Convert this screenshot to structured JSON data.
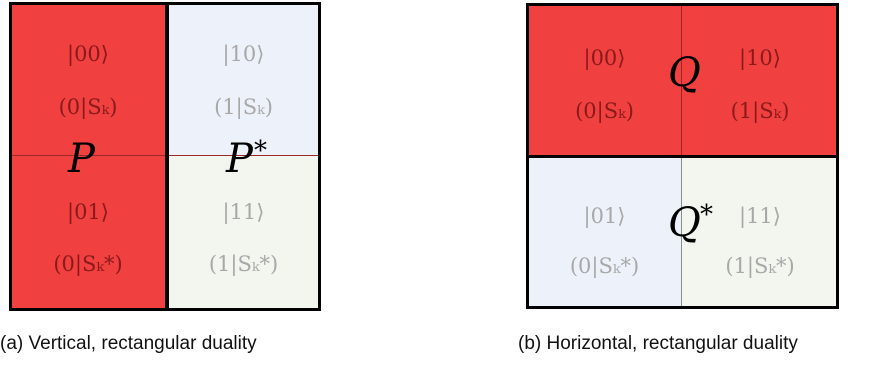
{
  "diagram_a": {
    "caption": "(a) Vertical, rectangular duality",
    "symbol_left": "P",
    "symbol_right": "P",
    "symbol_right_sup": "*",
    "cells": {
      "top_left": {
        "ket": "|00⟩",
        "label": "(0|Sₖ)"
      },
      "bottom_left": {
        "ket": "|01⟩",
        "label": "(0|Sₖ*)"
      },
      "top_right": {
        "ket": "|10⟩",
        "label": "(1|Sₖ)"
      },
      "bottom_right": {
        "ket": "|11⟩",
        "label": "(1|Sₖ*)"
      }
    }
  },
  "diagram_b": {
    "caption": "(b) Horizontal, rectangular duality",
    "symbol_top": "Q",
    "symbol_bottom": "Q",
    "symbol_bottom_sup": "*",
    "cells": {
      "top_left": {
        "ket": "|00⟩",
        "label": "(0|Sₖ)"
      },
      "top_right": {
        "ket": "|10⟩",
        "label": "(1|Sₖ)"
      },
      "bottom_left": {
        "ket": "|01⟩",
        "label": "(0|Sₖ*)"
      },
      "bottom_right": {
        "ket": "|11⟩",
        "label": "(1|Sₖ*)"
      }
    }
  },
  "colors": {
    "red": "#f04040",
    "light_blue": "#edf2fa",
    "light_green": "#f2f6ee",
    "dark_text": "#8a1a1a",
    "grey_text": "#a8a8a8"
  }
}
